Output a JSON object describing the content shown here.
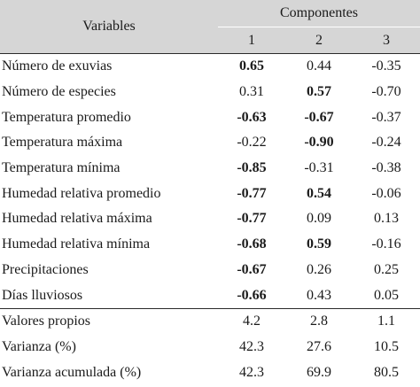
{
  "header": {
    "variables": "Variables",
    "componentes": "Componentes",
    "components": [
      "1",
      "2",
      "3"
    ]
  },
  "rows": [
    {
      "label": "Número de exuvias",
      "values": [
        "0.65",
        "0.44",
        "-0.35"
      ],
      "bold": [
        true,
        false,
        false
      ]
    },
    {
      "label": "Número de especies",
      "values": [
        "0.31",
        "0.57",
        "-0.70"
      ],
      "bold": [
        false,
        true,
        false
      ]
    },
    {
      "label": "Temperatura promedio",
      "values": [
        "-0.63",
        "-0.67",
        "-0.37"
      ],
      "bold": [
        true,
        true,
        false
      ]
    },
    {
      "label": "Temperatura máxima",
      "values": [
        "-0.22",
        "-0.90",
        "-0.24"
      ],
      "bold": [
        false,
        true,
        false
      ]
    },
    {
      "label": "Temperatura mínima",
      "values": [
        "-0.85",
        "-0.31",
        "-0.38"
      ],
      "bold": [
        true,
        false,
        false
      ]
    },
    {
      "label": "Humedad relativa promedio",
      "values": [
        "-0.77",
        "0.54",
        "-0.06"
      ],
      "bold": [
        true,
        true,
        false
      ]
    },
    {
      "label": "Humedad relativa máxima",
      "values": [
        "-0.77",
        "0.09",
        "0.13"
      ],
      "bold": [
        true,
        false,
        false
      ]
    },
    {
      "label": "Humedad relativa mínima",
      "values": [
        "-0.68",
        "0.59",
        "-0.16"
      ],
      "bold": [
        true,
        true,
        false
      ]
    },
    {
      "label": "Precipitaciones",
      "values": [
        "-0.67",
        "0.26",
        "0.25"
      ],
      "bold": [
        true,
        false,
        false
      ]
    },
    {
      "label": "Días lluviosos",
      "values": [
        "-0.66",
        "0.43",
        "0.05"
      ],
      "bold": [
        true,
        false,
        false
      ]
    }
  ],
  "summary_rows": [
    {
      "label": "Valores propios",
      "values": [
        "4.2",
        "2.8",
        "1.1"
      ]
    },
    {
      "label": "Varianza (%)",
      "values": [
        "42.3",
        "27.6",
        "10.5"
      ]
    },
    {
      "label": "Varianza acumulada (%)",
      "values": [
        "42.3",
        "69.9",
        "80.5"
      ]
    }
  ],
  "colors": {
    "header_bg": "#d6d6d6",
    "rule": "#2a2a2a",
    "text": "#1a1a1a"
  }
}
